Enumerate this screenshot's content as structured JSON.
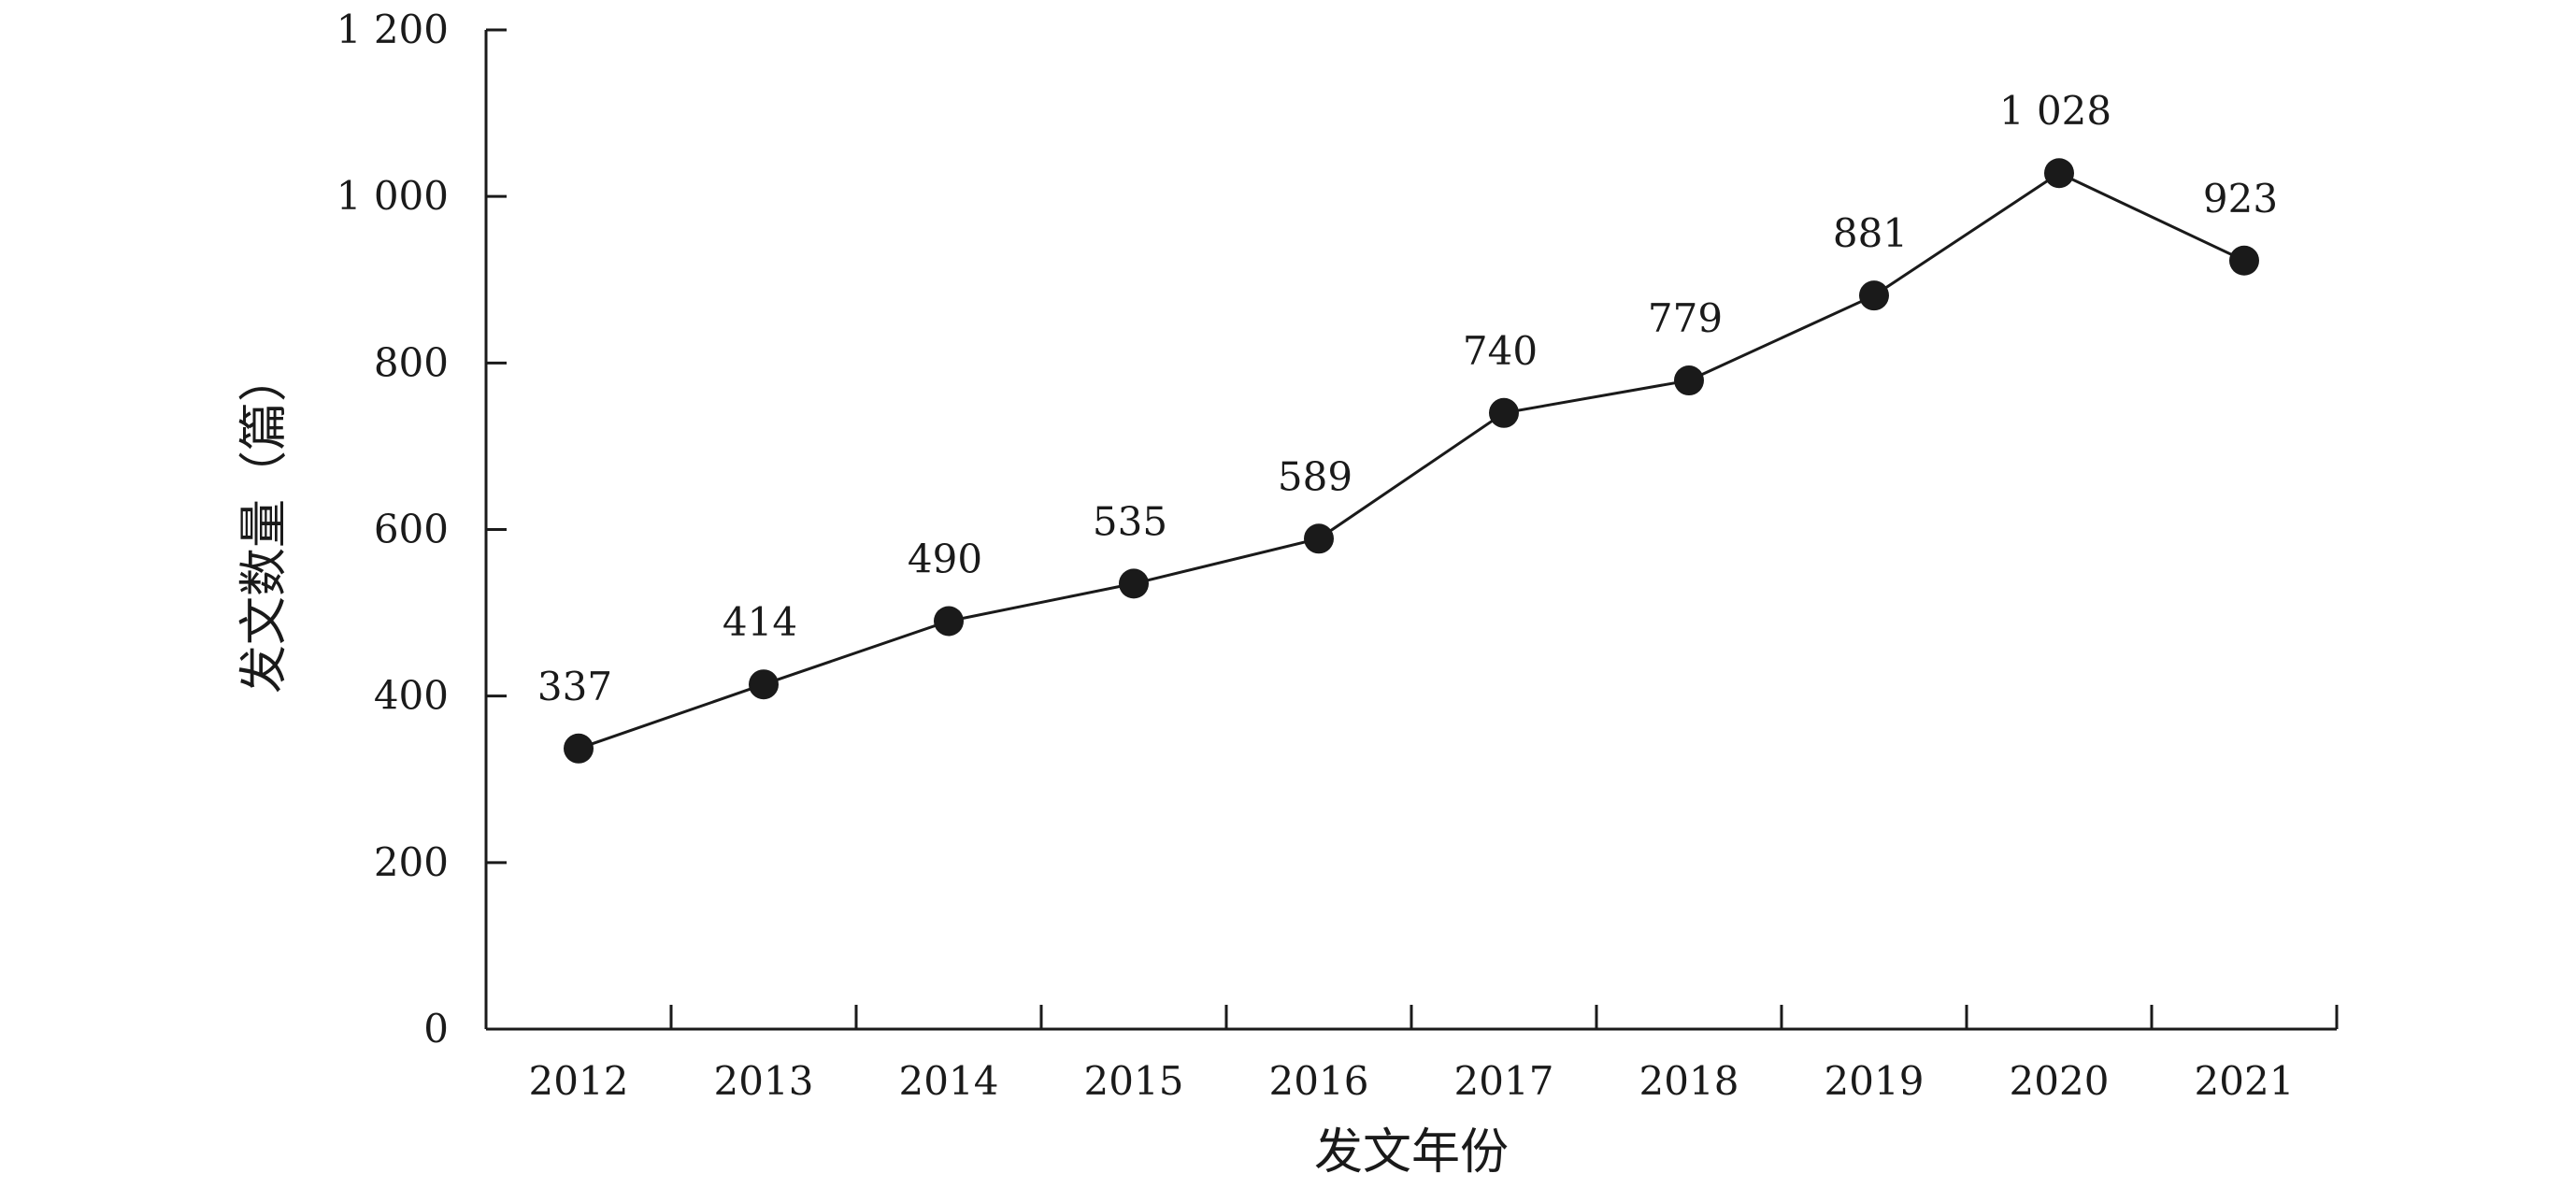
{
  "chart_data": {
    "type": "line",
    "categories": [
      "2012",
      "2013",
      "2014",
      "2015",
      "2016",
      "2017",
      "2018",
      "2019",
      "2020",
      "2021"
    ],
    "values": [
      337,
      414,
      490,
      535,
      589,
      740,
      779,
      881,
      1028,
      923
    ],
    "data_labels": [
      "337",
      "414",
      "490",
      "535",
      "589",
      "740",
      "779",
      "881",
      "1 028",
      "923"
    ],
    "xlabel": "发文年份",
    "ylabel": "发文数量（篇）",
    "ylim": [
      0,
      1200
    ],
    "yticks": [
      0,
      200,
      400,
      600,
      800,
      1000,
      1200
    ],
    "ytick_labels": [
      "0",
      "200",
      "400",
      "600",
      "800",
      "1 000",
      "1 200"
    ],
    "grid": false,
    "legend": "none",
    "colors": {
      "line": "#1a1a1a",
      "marker": "#1a1a1a"
    }
  }
}
